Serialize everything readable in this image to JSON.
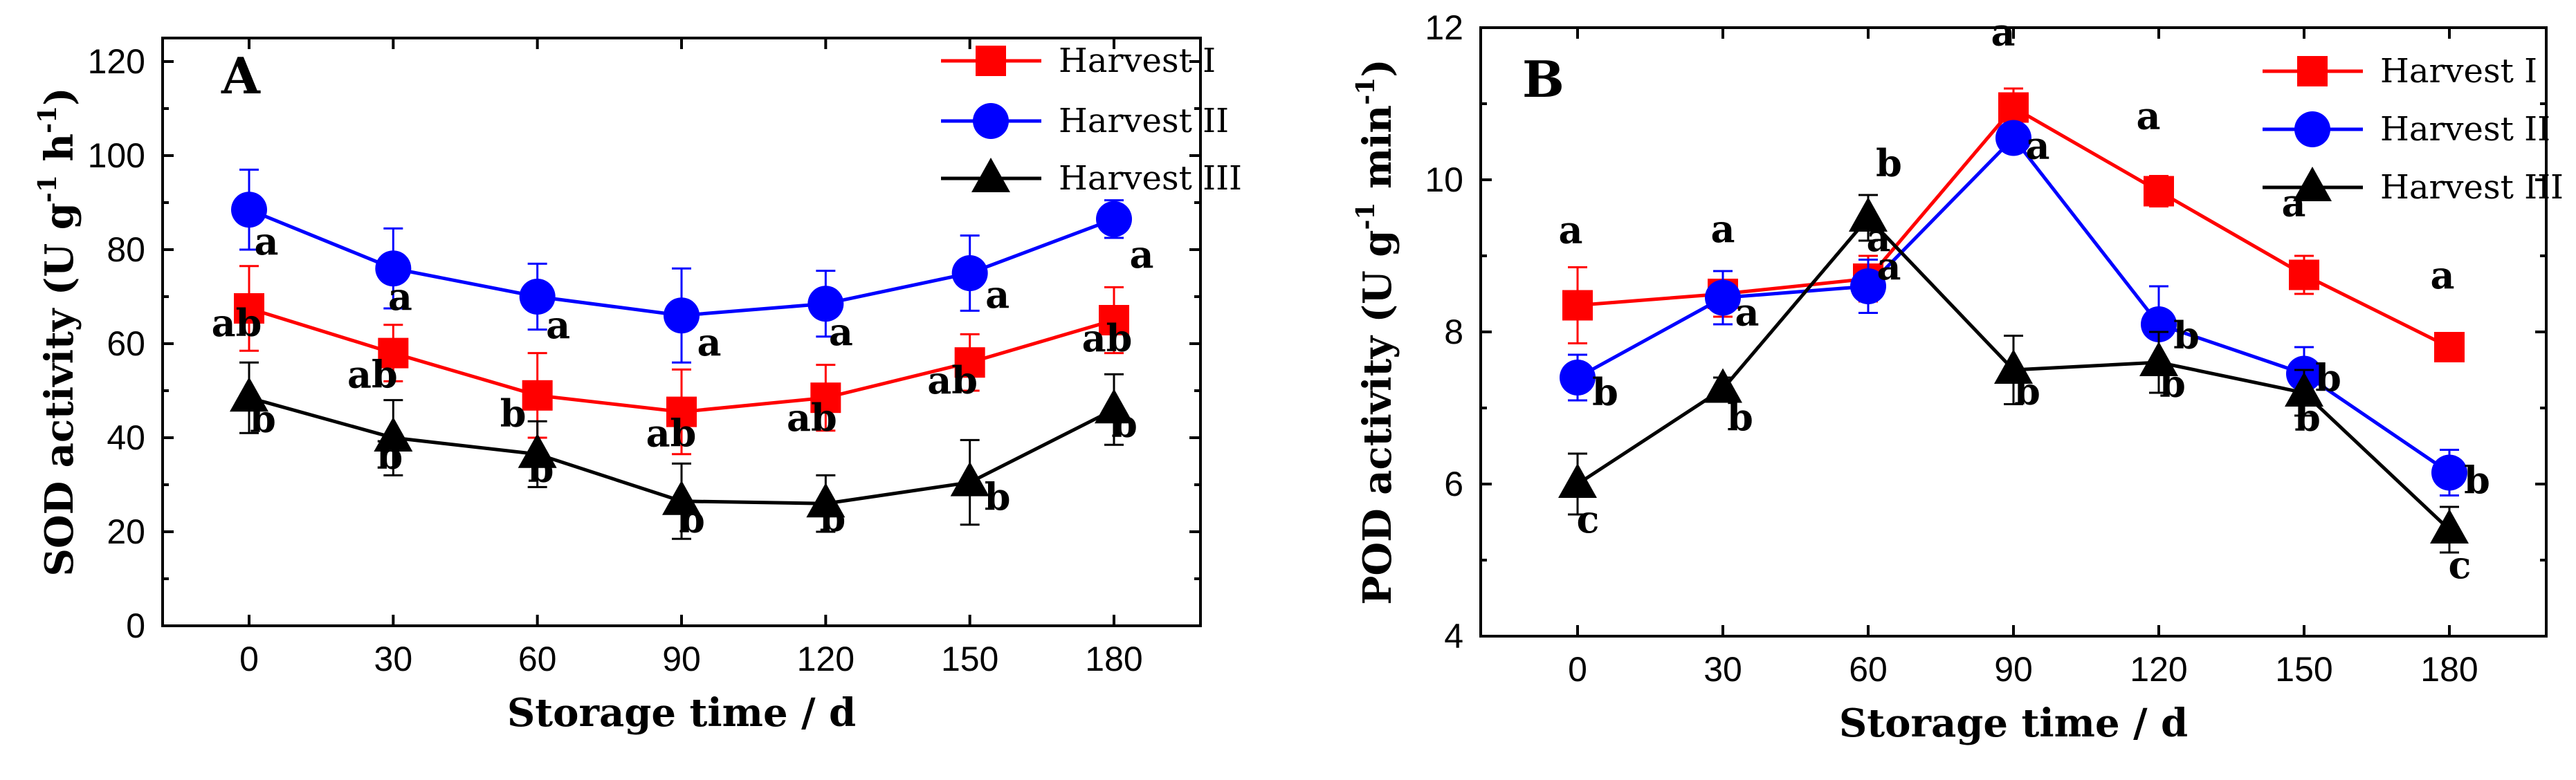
{
  "chart_data": [
    {
      "type": "line",
      "panel_label": "A",
      "xlabel": "Storage time / d",
      "ylabel": "SOD activity (U g",
      "ylabel_sup1": "-1",
      "ylabel_mid": " h",
      "ylabel_sup2": "-1",
      "ylabel_end": ")",
      "x": [
        0,
        30,
        60,
        90,
        120,
        150,
        180
      ],
      "x_ticks": [
        "0",
        "30",
        "60",
        "90",
        "120",
        "150",
        "180"
      ],
      "y_ticks": [
        "0",
        "20",
        "40",
        "60",
        "80",
        "100",
        "120"
      ],
      "ylim": [
        0,
        125
      ],
      "xlim": [
        -18,
        198
      ],
      "legend_position": "top-right",
      "series": [
        {
          "name": "Harvest I",
          "color": "#ff0000",
          "marker": "square",
          "values": [
            67.5,
            58,
            49,
            45.5,
            48.5,
            56,
            65
          ],
          "errors": [
            9,
            6,
            9,
            9,
            7,
            6,
            7
          ],
          "labels": [
            "ab",
            "ab",
            "b",
            "ab",
            "ab",
            "ab",
            "ab"
          ]
        },
        {
          "name": "Harvest II",
          "color": "#0000ff",
          "marker": "circle",
          "values": [
            88.5,
            76,
            70,
            66,
            68.5,
            75,
            86.5
          ],
          "errors": [
            8.5,
            8.5,
            7,
            10,
            7,
            8,
            4
          ],
          "labels": [
            "a",
            "a",
            "a",
            "a",
            "a",
            "a",
            "a"
          ]
        },
        {
          "name": "Harvest III",
          "color": "#000000",
          "marker": "triangle",
          "values": [
            48.5,
            40,
            36.5,
            26.5,
            26,
            30.5,
            46
          ],
          "errors": [
            7.5,
            8,
            7,
            8,
            6,
            9,
            7.5
          ],
          "labels": [
            "b",
            "b",
            "b",
            "b",
            "b",
            "b",
            "b"
          ]
        }
      ]
    },
    {
      "type": "line",
      "panel_label": "B",
      "xlabel": "Storage time / d",
      "ylabel": "POD activity (U g",
      "ylabel_sup1": "-1",
      "ylabel_mid": " min",
      "ylabel_sup2": "-1",
      "ylabel_end": ")",
      "x": [
        0,
        30,
        60,
        90,
        120,
        150,
        180
      ],
      "x_ticks": [
        "0",
        "30",
        "60",
        "90",
        "120",
        "150",
        "180"
      ],
      "y_ticks": [
        "4",
        "6",
        "8",
        "10",
        "12"
      ],
      "ylim": [
        4,
        12
      ],
      "xlim": [
        -20,
        200
      ],
      "legend_position": "top-right",
      "series": [
        {
          "name": "Harvest I",
          "color": "#ff0000",
          "marker": "square",
          "values": [
            8.35,
            8.5,
            8.7,
            10.95,
            9.85,
            8.75,
            7.8
          ],
          "errors": [
            0.5,
            0.3,
            0.3,
            0.25,
            0.2,
            0.25,
            0.12
          ],
          "labels": [
            "a",
            "a",
            "a",
            "a",
            "a",
            "a",
            "a"
          ]
        },
        {
          "name": "Harvest II",
          "color": "#0000ff",
          "marker": "circle",
          "values": [
            7.4,
            8.45,
            8.6,
            10.55,
            8.1,
            7.45,
            6.15
          ],
          "errors": [
            0.3,
            0.35,
            0.35,
            0.15,
            0.5,
            0.35,
            0.3
          ],
          "labels": [
            "b",
            "a",
            "a",
            "a",
            "b",
            "b",
            "b"
          ]
        },
        {
          "name": "Harvest III",
          "color": "#000000",
          "marker": "triangle",
          "values": [
            6.0,
            7.25,
            9.5,
            7.5,
            7.6,
            7.2,
            5.4
          ],
          "errors": [
            0.4,
            0.15,
            0.3,
            0.45,
            0.4,
            0.3,
            0.3
          ],
          "labels": [
            "c",
            "b",
            "b",
            "b",
            "b",
            "b",
            "c"
          ]
        }
      ]
    }
  ]
}
